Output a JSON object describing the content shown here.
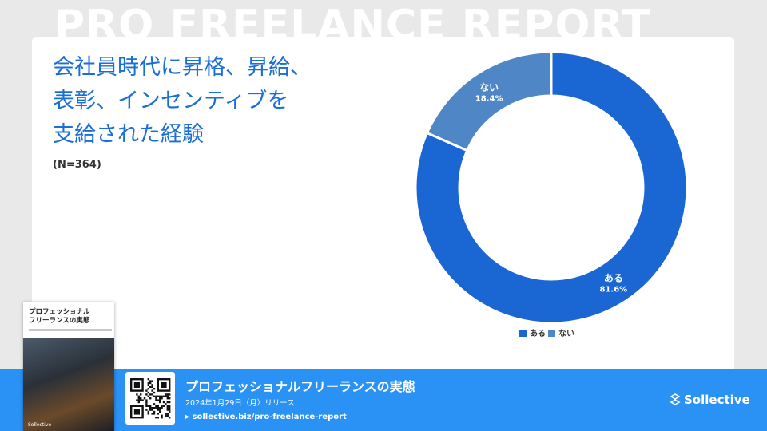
{
  "background_title": "PRO FREELANCE REPORT",
  "chart_title_lines": [
    "会社員時代に昇格、昇給、",
    "表彰、インセンティブを",
    "支給された経験"
  ],
  "sample_size": "(N=364)",
  "chart_data": {
    "type": "pie",
    "variant": "donut",
    "categories": [
      "ある",
      "ない"
    ],
    "values": [
      81.6,
      18.4
    ],
    "value_labels": [
      "81.6%",
      "18.4%"
    ],
    "colors": [
      "#1a66d3",
      "#4f86c6"
    ],
    "legend": [
      "ある",
      "ない"
    ],
    "legend_placement": "bottom"
  },
  "book": {
    "title_lines": [
      "プロフェッショナル",
      "フリーランスの実態"
    ],
    "brand": "Sollective"
  },
  "footer": {
    "title": "プロフェッショナルフリーランスの実態",
    "date": "2024年1月29日（月）リリース",
    "url": "▸ sollective.biz/pro-freelance-report",
    "brand": "Sollective"
  },
  "colors": {
    "accent": "#1a6ed8",
    "footer": "#2a91f5"
  }
}
